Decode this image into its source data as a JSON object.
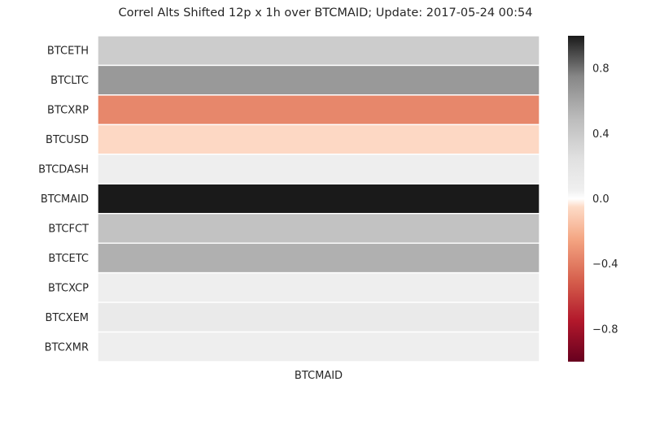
{
  "chart_data": {
    "type": "heatmap",
    "title": "Correl Alts Shifted 12p x 1h over BTCMAID; Update: 2017-05-24 00:54",
    "columns": [
      "BTCMAID"
    ],
    "rows": [
      "BTCETH",
      "BTCLTC",
      "BTCXRP",
      "BTCUSD",
      "BTCDASH",
      "BTCMAID",
      "BTCFCT",
      "BTCETC",
      "BTCXCP",
      "BTCXEM",
      "BTCXMR"
    ],
    "values": [
      0.38,
      0.66,
      -0.36,
      -0.06,
      0.07,
      1.0,
      0.45,
      0.55,
      0.08,
      0.13,
      0.08
    ],
    "colorbar": {
      "min": -1.0,
      "max": 1.0,
      "ticks": [
        0.8,
        0.4,
        0.0,
        -0.4,
        -0.8
      ],
      "tick_labels": [
        "0.8",
        "0.4",
        "0.0",
        "−0.4",
        "−0.8"
      ],
      "colormap": "RdGy"
    },
    "grid": false,
    "legend": "colorbar-right"
  }
}
